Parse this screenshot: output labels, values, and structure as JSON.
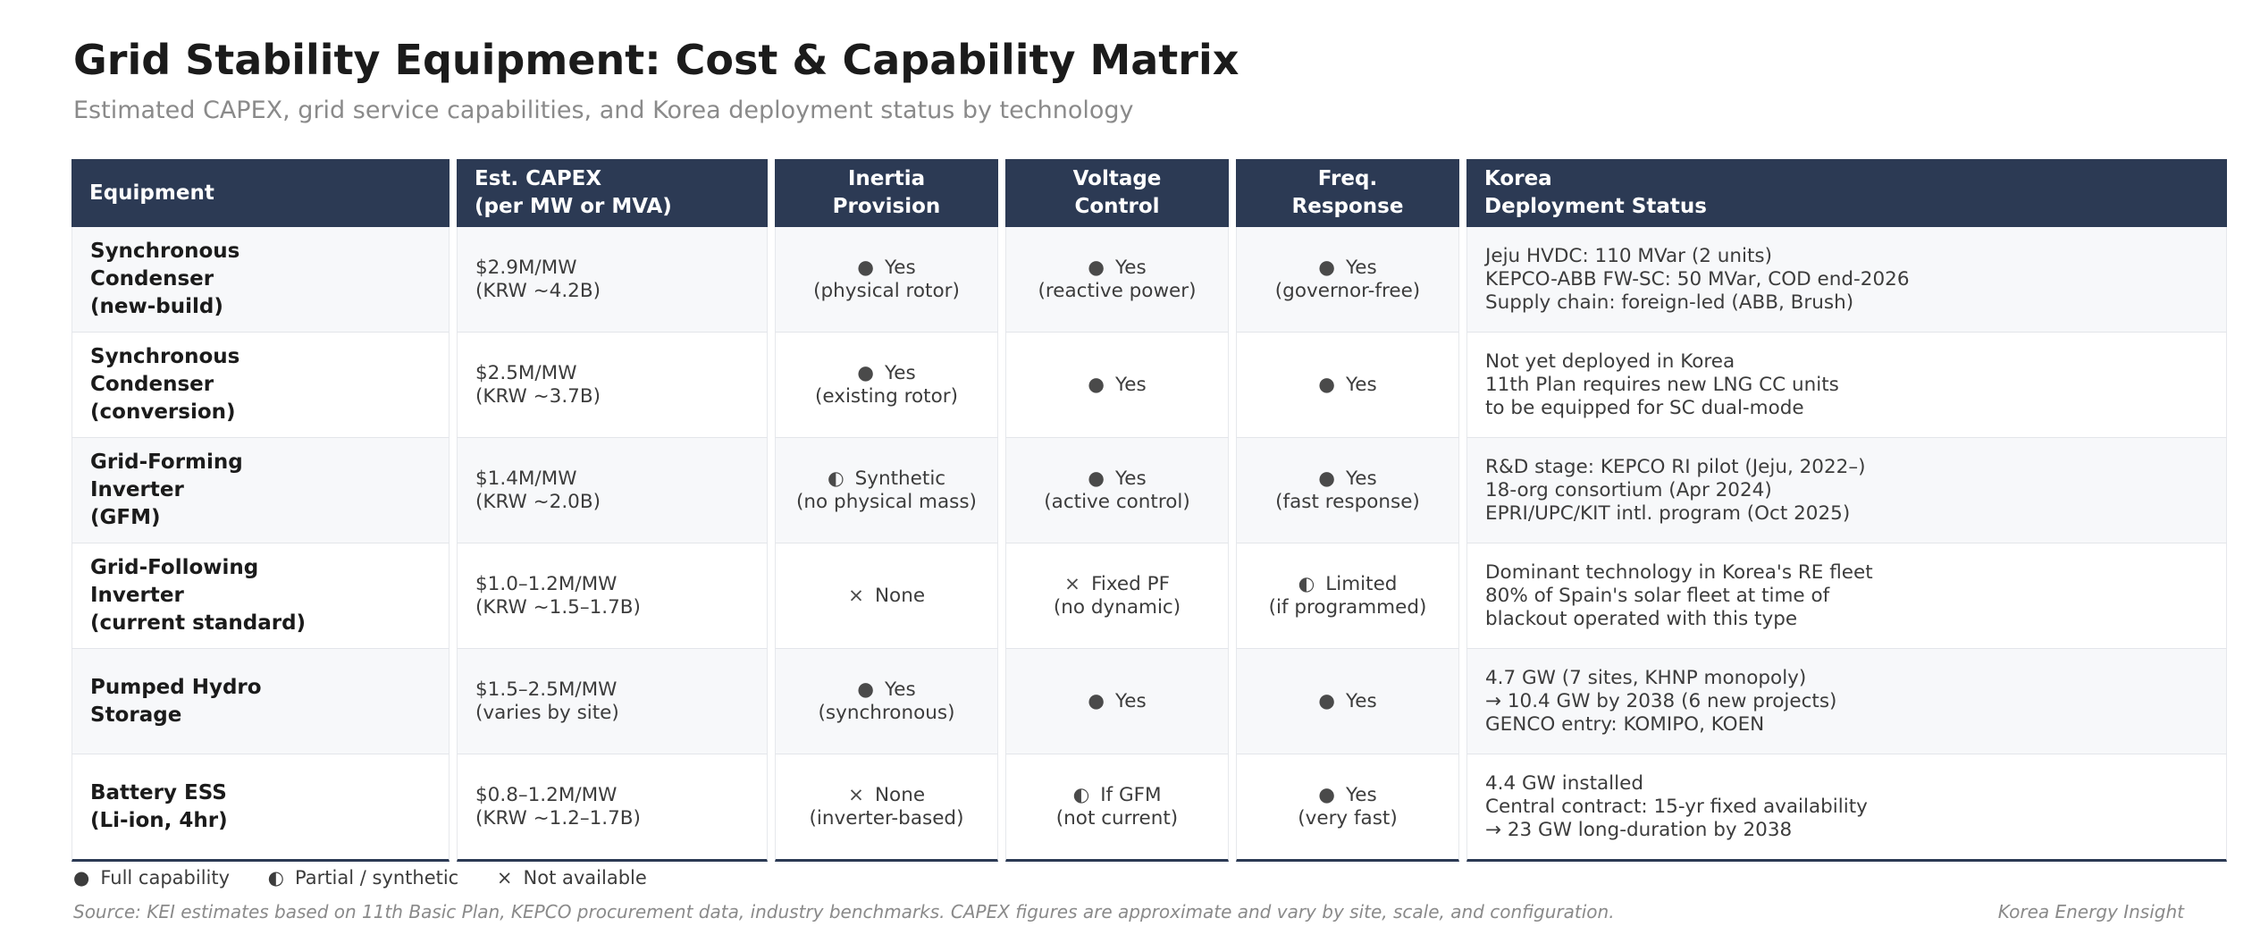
{
  "title": "Grid Stability Equipment: Cost & Capability Matrix",
  "subtitle": "Estimated CAPEX, grid service capabilities, and Korea deployment status by technology",
  "headers": {
    "equipment": "Equipment",
    "capex": "Est. CAPEX\n(per MW or MVA)",
    "inertia": "Inertia\nProvision",
    "voltage": "Voltage\nControl",
    "freq": "Freq.\nResponse",
    "korea": "Korea\nDeployment Status"
  },
  "rows": [
    {
      "equipment": "Synchronous\nCondenser\n(new-build)",
      "capex": "$2.9M/MW\n(KRW ~4.2B)",
      "inertia": {
        "symbol": "●",
        "text": "Yes\n(physical rotor)"
      },
      "voltage": {
        "symbol": "●",
        "text": "Yes\n(reactive power)"
      },
      "freq": {
        "symbol": "●",
        "text": "Yes\n(governor-free)"
      },
      "korea": "Jeju HVDC: 110 MVar (2 units)\nKEPCO-ABB FW-SC: 50 MVar, COD end-2026\nSupply chain: foreign-led (ABB, Brush)"
    },
    {
      "equipment": "Synchronous\nCondenser\n(conversion)",
      "capex": "$2.5M/MW\n(KRW ~3.7B)",
      "inertia": {
        "symbol": "●",
        "text": "Yes\n(existing rotor)"
      },
      "voltage": {
        "symbol": "●",
        "text": "Yes"
      },
      "freq": {
        "symbol": "●",
        "text": "Yes"
      },
      "korea": "Not yet deployed in Korea\n11th Plan requires new LNG CC units\nto be equipped for SC dual-mode"
    },
    {
      "equipment": "Grid-Forming\nInverter\n(GFM)",
      "capex": "$1.4M/MW\n(KRW ~2.0B)",
      "inertia": {
        "symbol": "◐",
        "text": "Synthetic\n(no physical mass)"
      },
      "voltage": {
        "symbol": "●",
        "text": "Yes\n(active control)"
      },
      "freq": {
        "symbol": "●",
        "text": "Yes\n(fast response)"
      },
      "korea": "R&D stage: KEPCO RI pilot (Jeju, 2022–)\n18-org consortium (Apr 2024)\nEPRI/UPC/KIT intl. program (Oct 2025)"
    },
    {
      "equipment": "Grid-Following\nInverter\n(current standard)",
      "capex": "$1.0–1.2M/MW\n(KRW ~1.5–1.7B)",
      "inertia": {
        "symbol": "×",
        "text": "None"
      },
      "voltage": {
        "symbol": "×",
        "text": "Fixed PF\n(no dynamic)"
      },
      "freq": {
        "symbol": "◐",
        "text": "Limited\n(if programmed)"
      },
      "korea": "Dominant technology in Korea's RE fleet\n80% of Spain's solar fleet at time of\nblackout operated with this type"
    },
    {
      "equipment": "Pumped Hydro\nStorage",
      "capex": "$1.5–2.5M/MW\n(varies by site)",
      "inertia": {
        "symbol": "●",
        "text": "Yes\n(synchronous)"
      },
      "voltage": {
        "symbol": "●",
        "text": "Yes"
      },
      "freq": {
        "symbol": "●",
        "text": "Yes"
      },
      "korea": "4.7 GW (7 sites, KHNP monopoly)\n→ 10.4 GW by 2038 (6 new projects)\nGENCO entry: KOMIPO, KOEN"
    },
    {
      "equipment": "Battery ESS\n(Li-ion, 4hr)",
      "capex": "$0.8–1.2M/MW\n(KRW ~1.2–1.7B)",
      "inertia": {
        "symbol": "×",
        "text": "None\n(inverter-based)"
      },
      "voltage": {
        "symbol": "◐",
        "text": "If GFM\n(not current)"
      },
      "freq": {
        "symbol": "●",
        "text": "Yes\n(very fast)"
      },
      "korea": "4.4 GW installed\nCentral contract: 15-yr fixed availability\n→ 23 GW long-duration by 2038"
    }
  ],
  "legend": [
    {
      "symbol": "●",
      "label": "Full capability"
    },
    {
      "symbol": "◐",
      "label": "Partial / synthetic"
    },
    {
      "symbol": "×",
      "label": "Not available"
    }
  ],
  "source": "Source: KEI estimates based on 11th Basic Plan, KEPCO procurement data, industry benchmarks. CAPEX figures are approximate and vary by site, scale, and configuration.",
  "brand": "Korea Energy Insight",
  "colors": {
    "header_bg": "#2c3a54",
    "header_text": "#ffffff",
    "row_alt_bg": "#f7f8fa",
    "muted_text": "#8a8a8a"
  }
}
